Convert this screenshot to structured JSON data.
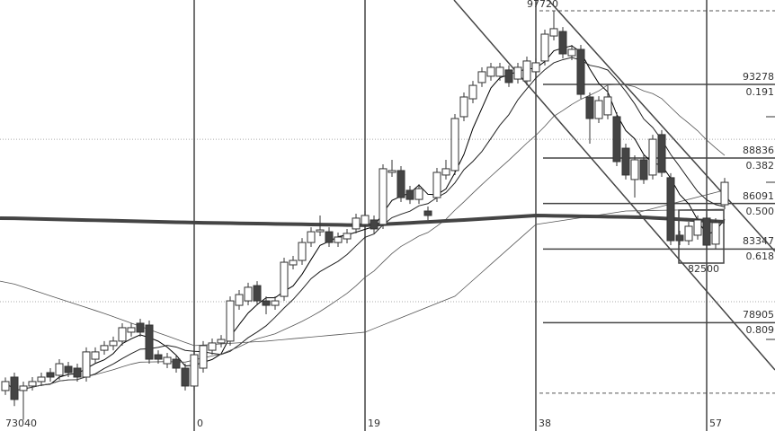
{
  "chart_data": {
    "type": "candlestick",
    "title": "",
    "xlabel": "",
    "ylabel": "",
    "ylim": [
      72800,
      98370
    ],
    "grid": false,
    "first_bar_index": -21,
    "candles": [
      [
        74810,
        75600,
        74540,
        75350
      ],
      [
        75620,
        75890,
        73870,
        74270
      ],
      [
        74810,
        75350,
        73040,
        75080
      ],
      [
        75080,
        75620,
        74810,
        75350
      ],
      [
        75350,
        75890,
        75080,
        75620
      ],
      [
        75890,
        76160,
        75350,
        75620
      ],
      [
        75730,
        76700,
        75460,
        76430
      ],
      [
        76270,
        76540,
        75620,
        75890
      ],
      [
        76160,
        76430,
        75350,
        75620
      ],
      [
        75620,
        77410,
        75350,
        77140
      ],
      [
        76700,
        77410,
        76430,
        77140
      ],
      [
        77240,
        77790,
        76970,
        77520
      ],
      [
        77520,
        78060,
        77240,
        77790
      ],
      [
        77790,
        78870,
        77520,
        78600
      ],
      [
        78330,
        78870,
        78060,
        78600
      ],
      [
        78870,
        79140,
        78060,
        78330
      ],
      [
        78760,
        79030,
        76430,
        76700
      ],
      [
        76970,
        77240,
        76430,
        76700
      ],
      [
        76430,
        77080,
        76160,
        76810
      ],
      [
        76700,
        76970,
        75890,
        76160
      ],
      [
        76160,
        76430,
        74810,
        75080
      ],
      [
        75080,
        77240,
        74810,
        76970
      ],
      [
        76160,
        77790,
        75890,
        77520
      ],
      [
        77240,
        77950,
        76970,
        77680
      ],
      [
        77680,
        78160,
        77410,
        77890
      ],
      [
        77790,
        80490,
        77520,
        80220
      ],
      [
        79950,
        80870,
        79680,
        80600
      ],
      [
        80220,
        81310,
        79950,
        81040
      ],
      [
        81140,
        81410,
        79950,
        80220
      ],
      [
        80220,
        80490,
        79410,
        79950
      ],
      [
        79950,
        80490,
        79680,
        80220
      ],
      [
        80490,
        82820,
        80220,
        82550
      ],
      [
        82390,
        82930,
        82120,
        82660
      ],
      [
        82660,
        84010,
        82390,
        83740
      ],
      [
        83740,
        84660,
        83470,
        84390
      ],
      [
        84390,
        85370,
        84120,
        84500
      ],
      [
        84390,
        84660,
        83470,
        83740
      ],
      [
        83740,
        84340,
        83470,
        84070
      ],
      [
        83960,
        84560,
        83690,
        84290
      ],
      [
        84560,
        85480,
        84290,
        85210
      ],
      [
        84830,
        85640,
        84560,
        85370
      ],
      [
        85100,
        85370,
        84290,
        84560
      ],
      [
        84830,
        88460,
        84560,
        88190
      ],
      [
        87970,
        88730,
        87700,
        88080
      ],
      [
        88080,
        88350,
        86180,
        86450
      ],
      [
        86890,
        87160,
        86070,
        86340
      ],
      [
        86340,
        87260,
        86070,
        86990
      ],
      [
        85640,
        85910,
        85100,
        85370
      ],
      [
        86450,
        88240,
        86180,
        87970
      ],
      [
        87810,
        88730,
        87540,
        88190
      ],
      [
        88080,
        91490,
        87810,
        91220
      ],
      [
        91330,
        92790,
        91060,
        92520
      ],
      [
        92410,
        93490,
        92140,
        93220
      ],
      [
        93390,
        94310,
        93120,
        94040
      ],
      [
        93770,
        94580,
        93500,
        94310
      ],
      [
        93770,
        94580,
        93500,
        94310
      ],
      [
        94150,
        94420,
        93120,
        93390
      ],
      [
        93600,
        94580,
        93330,
        94310
      ],
      [
        93490,
        94960,
        93220,
        94690
      ],
      [
        94040,
        94850,
        93770,
        94580
      ],
      [
        94690,
        96580,
        94420,
        96310
      ],
      [
        96200,
        97720,
        95930,
        96640
      ],
      [
        96470,
        96740,
        94850,
        95120
      ],
      [
        95010,
        95660,
        94740,
        95390
      ],
      [
        95390,
        95660,
        92410,
        92680
      ],
      [
        92520,
        92790,
        89700,
        91220
      ],
      [
        91220,
        92570,
        90950,
        92300
      ],
      [
        91440,
        93220,
        91170,
        92520
      ],
      [
        91330,
        91600,
        88350,
        88620
      ],
      [
        89430,
        89700,
        87540,
        87810
      ],
      [
        87540,
        89000,
        86450,
        88730
      ],
      [
        88730,
        89000,
        87270,
        87540
      ],
      [
        87810,
        90240,
        87540,
        89970
      ],
      [
        90250,
        90520,
        87700,
        87970
      ],
      [
        87650,
        87920,
        83580,
        83850
      ],
      [
        84180,
        84450,
        83580,
        83850
      ],
      [
        83850,
        84990,
        83580,
        84720
      ],
      [
        84180,
        85370,
        83910,
        85100
      ],
      [
        85210,
        85480,
        83310,
        83580
      ],
      [
        83640,
        85210,
        83370,
        84940
      ],
      [
        86020,
        87640,
        85750,
        87370
      ]
    ],
    "moving_averages": [
      {
        "type": "sma",
        "period": 5,
        "color": "#000000",
        "width": 1
      },
      {
        "type": "sma",
        "period": 10,
        "color": "#222222",
        "width": 1
      },
      {
        "type": "sma",
        "period": 20,
        "color": "#555555",
        "width": 0.8
      },
      {
        "type": "anchors",
        "color": "#555555",
        "width": 0.8,
        "points": [
          [
            -21,
            81410
          ],
          [
            -10,
            79460
          ],
          [
            0,
            77520
          ],
          [
            8,
            77790
          ],
          [
            19,
            78330
          ],
          [
            29,
            80500
          ],
          [
            38,
            84830
          ],
          [
            48,
            85640
          ],
          [
            59,
            85750
          ]
        ]
      },
      {
        "type": "anchors",
        "color": "#444444",
        "width": 4,
        "points": [
          [
            -21,
            85210
          ],
          [
            0,
            84940
          ],
          [
            19,
            84780
          ],
          [
            30,
            85100
          ],
          [
            38,
            85370
          ],
          [
            50,
            85260
          ],
          [
            59,
            84990
          ]
        ]
      }
    ],
    "period_markers": [
      {
        "bar": 0,
        "label": "0"
      },
      {
        "bar": 19,
        "label": "19"
      },
      {
        "bar": 38,
        "label": "38"
      },
      {
        "bar": 57,
        "label": "57"
      }
    ],
    "fibonacci": [
      {
        "price": 93278,
        "ratio": "0.191"
      },
      {
        "price": 88836,
        "ratio": "0.382"
      },
      {
        "price": 86091,
        "ratio": "0.500"
      },
      {
        "price": 83347,
        "ratio": "0.618"
      },
      {
        "price": 78905,
        "ratio": "0.809"
      }
    ],
    "high_label": "97720",
    "low_label": "73040",
    "box_label": "82500",
    "reference_lines": [
      {
        "price": 97720,
        "style": "dashed"
      },
      {
        "price": 89970,
        "style": "dotted"
      },
      {
        "price": 80170,
        "style": "dotted"
      },
      {
        "price": 74650,
        "style": "dashed"
      }
    ]
  }
}
